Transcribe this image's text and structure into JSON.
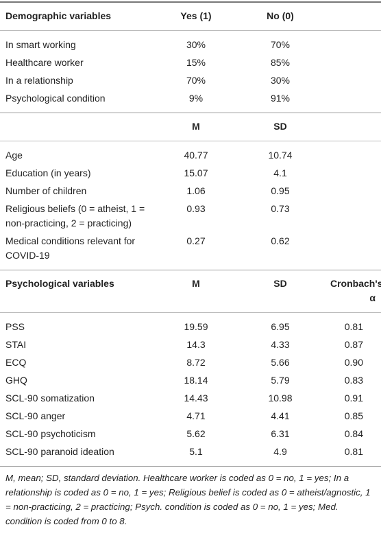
{
  "table": {
    "sections": [
      {
        "header": [
          "Demographic variables",
          "Yes (1)",
          "No (0)"
        ],
        "rows": [
          [
            "In smart working",
            "30%",
            "70%"
          ],
          [
            "Healthcare worker",
            "15%",
            "85%"
          ],
          [
            "In a relationship",
            "70%",
            "30%"
          ],
          [
            "Psychological condition",
            "9%",
            "91%"
          ]
        ]
      },
      {
        "header": [
          null,
          "M",
          "SD"
        ],
        "rows": [
          [
            "Age",
            "40.77",
            "10.74"
          ],
          [
            "Education (in years)",
            "15.07",
            "4.1"
          ],
          [
            "Number of children",
            "1.06",
            "0.95"
          ],
          [
            "Religious beliefs (0 = atheist, 1 = non-practicing, 2 = practicing)",
            "0.93",
            "0.73"
          ],
          [
            "Medical conditions relevant for COVID-19",
            "0.27",
            "0.62"
          ]
        ]
      },
      {
        "header": [
          "Psychological variables",
          "M",
          "SD",
          "Cronbach's α"
        ],
        "rows": [
          [
            "PSS",
            "19.59",
            "6.95",
            "0.81"
          ],
          [
            "STAI",
            "14.3",
            "4.33",
            "0.87"
          ],
          [
            "ECQ",
            "8.72",
            "5.66",
            "0.90"
          ],
          [
            "GHQ",
            "18.14",
            "5.79",
            "0.83"
          ],
          [
            "SCL-90 somatization",
            "14.43",
            "10.98",
            "0.91"
          ],
          [
            "SCL-90 anger",
            "4.71",
            "4.41",
            "0.85"
          ],
          [
            "SCL-90 psychoticism",
            "5.62",
            "6.31",
            "0.84"
          ],
          [
            "SCL-90 paranoid ideation",
            "5.1",
            "4.9",
            "0.81"
          ]
        ]
      }
    ],
    "footnote": "M, mean; SD, standard deviation. Healthcare worker is coded as 0 = no, 1 = yes; In a relationship is coded as 0 = no, 1 = yes; Religious belief is coded as 0 = atheist/agnostic, 1 = non-practicing, 2 = practicing; Psych. condition is coded as 0 = no, 1 = yes; Med. condition is coded from 0 to 8."
  }
}
